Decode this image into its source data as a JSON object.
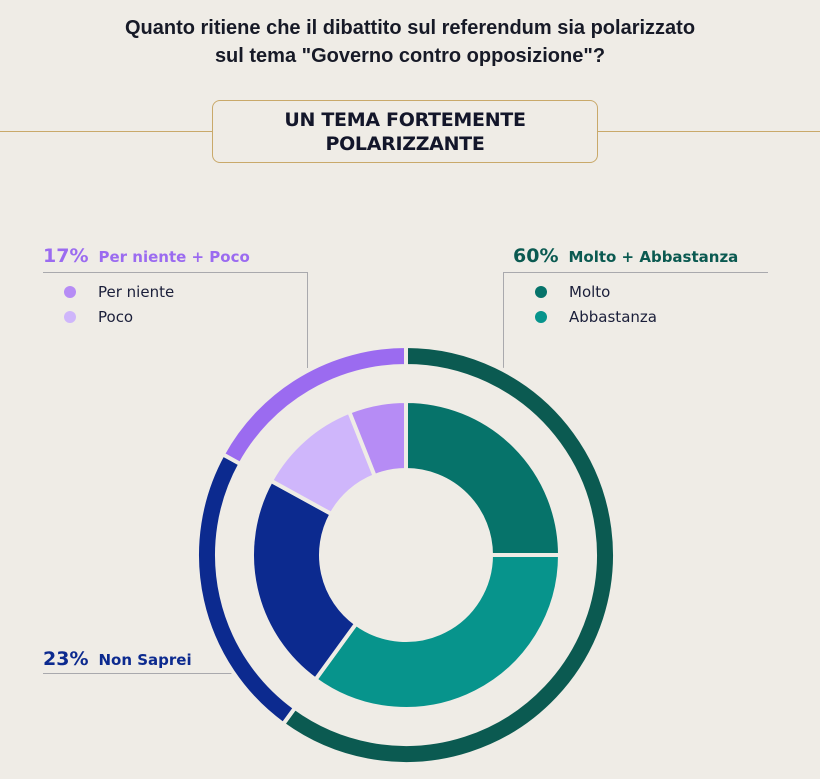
{
  "title": "Quanto ritiene che il dibattito sul referendum sia polarizzato\nsul tema \"Governo contro opposizione\"?",
  "title_line1": "Quanto ritiene che il dibattito sul referendum sia polarizzato",
  "title_line2": "sul tema \"Governo contro opposizione\"?",
  "badge": {
    "label": "UN TEMA FORTEMENTE\nPOLARIZZANTE"
  },
  "groups": {
    "negative": {
      "pct": "17%",
      "label": "Per niente + Poco",
      "color": "#9b6bf0",
      "legend": [
        {
          "label": "Per niente",
          "color": "#b68cf5"
        },
        {
          "label": "Poco",
          "color": "#cfb6fb"
        }
      ]
    },
    "positive": {
      "pct": "60%",
      "label": "Molto + Abbastanza",
      "color": "#0b5a51",
      "legend": [
        {
          "label": "Molto",
          "color": "#06736a"
        },
        {
          "label": "Abbastanza",
          "color": "#07948c"
        }
      ]
    },
    "unknown": {
      "pct": "23%",
      "label": "Non Saprei",
      "color": "#0c2a8f"
    }
  },
  "chart_data": {
    "type": "pie",
    "title": "Quanto ritiene che il dibattito sul referendum sia polarizzato sul tema \"Governo contro opposizione\"?",
    "subtitle": "UN TEMA FORTEMENTE POLARIZZANTE",
    "inner_ring": {
      "categories": [
        "Molto",
        "Abbastanza",
        "Non Saprei",
        "Poco",
        "Per niente"
      ],
      "values": [
        25,
        35,
        23,
        11,
        6
      ],
      "colors": [
        "#06736a",
        "#07948c",
        "#0c2a8f",
        "#cfb6fb",
        "#b68cf5"
      ]
    },
    "outer_ring": {
      "categories": [
        "Molto + Abbastanza",
        "Non Saprei",
        "Per niente + Poco"
      ],
      "values": [
        60,
        23,
        17
      ],
      "colors": [
        "#0b5a51",
        "#0c2a8f",
        "#9b6bf0"
      ]
    },
    "unit": "%",
    "legend_position": "top-left / top-right callouts"
  }
}
